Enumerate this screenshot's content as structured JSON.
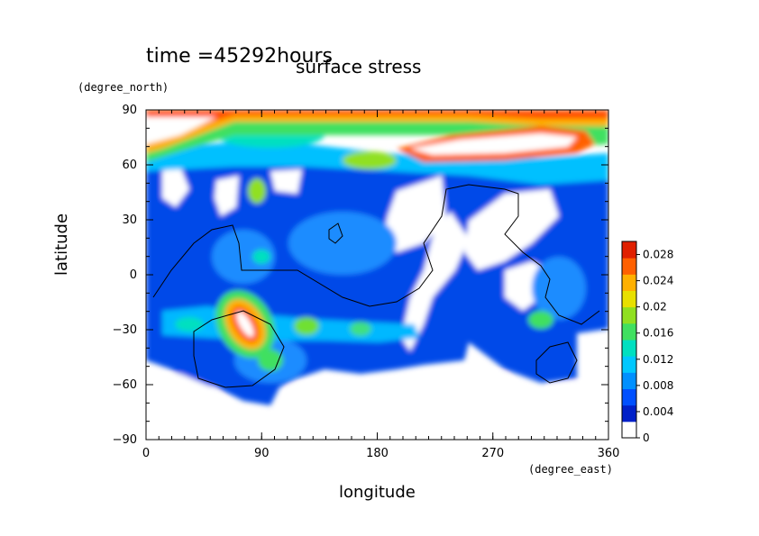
{
  "header": {
    "time_label": "time =45292hours",
    "title": "surface stress"
  },
  "chart_data": {
    "type": "heatmap",
    "title": "surface stress",
    "subtitle": "time =45292hours",
    "xlabel": "longitude",
    "xunit": "(degree_east)",
    "ylabel": "latitude",
    "yunit": "(degree_north)",
    "xlim": [
      0,
      360
    ],
    "ylim": [
      -90,
      90
    ],
    "x_ticks": [
      "0",
      "90",
      "180",
      "270",
      "360"
    ],
    "y_ticks": [
      "90",
      "60",
      "30",
      "0",
      "−30",
      "−60",
      "−90"
    ],
    "colorbar": {
      "min": 0,
      "max": 0.03,
      "ticks": [
        "0.028",
        "0.024",
        "0.02",
        "0.016",
        "0.012",
        "0.008",
        "0.004",
        "0"
      ],
      "colors": [
        "#ffffff",
        "#0020c8",
        "#0050ff",
        "#0090ff",
        "#00c8ff",
        "#00e0c0",
        "#40e060",
        "#90e020",
        "#e8e000",
        "#ffb000",
        "#ff6000",
        "#e02000"
      ]
    },
    "features": [
      {
        "name": "polar band",
        "lon": [
          0,
          360
        ],
        "lat": [
          60,
          85
        ],
        "level": "0.028"
      },
      {
        "name": "northern jet",
        "lon": [
          210,
          340
        ],
        "lat": [
          60,
          75
        ],
        "level": "0.028"
      },
      {
        "name": "southern max",
        "lon": [
          55,
          85
        ],
        "lat": [
          -45,
          -20
        ],
        "level": "0.024"
      },
      {
        "name": "subtropical band",
        "lon": [
          20,
          220
        ],
        "lat": [
          -40,
          -20
        ],
        "level": "0.016"
      }
    ]
  }
}
